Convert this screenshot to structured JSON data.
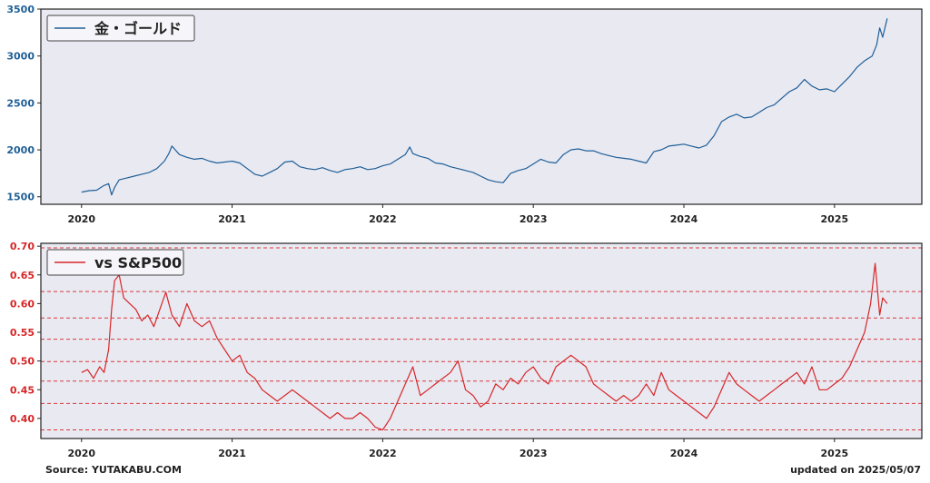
{
  "footer": {
    "source": "Source: YUTAKABU.COM",
    "updated": "updated on 2025/05/07"
  },
  "colors": {
    "gold_line": "#1f5f96",
    "ratio_line": "#d62728",
    "axes_bg": "#e9e9f2",
    "hline": "#d62728"
  },
  "chart_data": [
    {
      "type": "line",
      "title": "",
      "legend": {
        "label": "金・ゴールド",
        "position": "top-left"
      },
      "xlabel": "",
      "ylabel": "",
      "x_ticks": [
        "2020",
        "2021",
        "2022",
        "2023",
        "2024",
        "2025"
      ],
      "xlim": [
        2019.73,
        2025.58
      ],
      "ylim": [
        1420,
        3500
      ],
      "y_ticks": [
        1500,
        2000,
        2500,
        3000,
        3500
      ],
      "grid": false,
      "series": [
        {
          "name": "金・ゴールド",
          "x": [
            2020.0,
            2020.05,
            2020.1,
            2020.15,
            2020.18,
            2020.2,
            2020.22,
            2020.25,
            2020.3,
            2020.35,
            2020.4,
            2020.45,
            2020.5,
            2020.55,
            2020.58,
            2020.6,
            2020.65,
            2020.7,
            2020.75,
            2020.8,
            2020.85,
            2020.9,
            2020.95,
            2021.0,
            2021.05,
            2021.1,
            2021.15,
            2021.2,
            2021.25,
            2021.3,
            2021.35,
            2021.4,
            2021.45,
            2021.5,
            2021.55,
            2021.6,
            2021.65,
            2021.7,
            2021.75,
            2021.8,
            2021.85,
            2021.9,
            2021.95,
            2022.0,
            2022.05,
            2022.1,
            2022.15,
            2022.18,
            2022.2,
            2022.25,
            2022.3,
            2022.35,
            2022.4,
            2022.45,
            2022.5,
            2022.55,
            2022.6,
            2022.65,
            2022.7,
            2022.75,
            2022.8,
            2022.85,
            2022.9,
            2022.95,
            2023.0,
            2023.05,
            2023.1,
            2023.15,
            2023.2,
            2023.25,
            2023.3,
            2023.35,
            2023.4,
            2023.45,
            2023.5,
            2023.55,
            2023.6,
            2023.65,
            2023.7,
            2023.75,
            2023.8,
            2023.85,
            2023.9,
            2023.95,
            2024.0,
            2024.05,
            2024.1,
            2024.15,
            2024.2,
            2024.25,
            2024.3,
            2024.35,
            2024.4,
            2024.45,
            2024.5,
            2024.55,
            2024.6,
            2024.65,
            2024.7,
            2024.75,
            2024.8,
            2024.85,
            2024.9,
            2024.95,
            2025.0,
            2025.05,
            2025.1,
            2025.15,
            2025.2,
            2025.25,
            2025.28,
            2025.3,
            2025.32,
            2025.35
          ],
          "y": [
            1550,
            1565,
            1570,
            1620,
            1640,
            1520,
            1600,
            1680,
            1700,
            1720,
            1740,
            1760,
            1800,
            1880,
            1960,
            2040,
            1950,
            1920,
            1900,
            1910,
            1880,
            1860,
            1870,
            1880,
            1860,
            1800,
            1740,
            1720,
            1760,
            1800,
            1870,
            1880,
            1820,
            1800,
            1790,
            1810,
            1780,
            1760,
            1790,
            1800,
            1820,
            1790,
            1800,
            1830,
            1850,
            1900,
            1950,
            2030,
            1960,
            1930,
            1910,
            1860,
            1850,
            1820,
            1800,
            1780,
            1760,
            1720,
            1680,
            1660,
            1650,
            1750,
            1780,
            1800,
            1850,
            1900,
            1870,
            1860,
            1950,
            2000,
            2010,
            1990,
            1990,
            1960,
            1940,
            1920,
            1910,
            1900,
            1880,
            1860,
            1980,
            2000,
            2040,
            2050,
            2060,
            2040,
            2020,
            2050,
            2150,
            2300,
            2350,
            2380,
            2340,
            2350,
            2400,
            2450,
            2480,
            2550,
            2620,
            2660,
            2750,
            2680,
            2640,
            2650,
            2620,
            2700,
            2780,
            2880,
            2950,
            3000,
            3120,
            3300,
            3200,
            3400
          ]
        }
      ]
    },
    {
      "type": "line",
      "title": "",
      "legend": {
        "label": "vs S&P500",
        "position": "top-left"
      },
      "xlabel": "",
      "ylabel": "",
      "x_ticks": [
        "2020",
        "2021",
        "2022",
        "2023",
        "2024",
        "2025"
      ],
      "xlim": [
        2019.73,
        2025.58
      ],
      "ylim": [
        0.365,
        0.705
      ],
      "y_ticks": [
        0.4,
        0.45,
        0.5,
        0.55,
        0.6,
        0.65,
        0.7
      ],
      "y_tick_labels": [
        "0.40",
        "0.45",
        "0.50",
        "0.55",
        "0.60",
        "0.65",
        "0.70"
      ],
      "hlines": [
        0.38,
        0.426,
        0.465,
        0.499,
        0.538,
        0.575,
        0.621,
        0.697
      ],
      "grid": false,
      "series": [
        {
          "name": "vs S&P500",
          "x": [
            2020.0,
            2020.04,
            2020.08,
            2020.12,
            2020.15,
            2020.18,
            2020.2,
            2020.22,
            2020.25,
            2020.28,
            2020.32,
            2020.36,
            2020.4,
            2020.44,
            2020.48,
            2020.52,
            2020.56,
            2020.6,
            2020.65,
            2020.7,
            2020.75,
            2020.8,
            2020.85,
            2020.9,
            2020.95,
            2021.0,
            2021.05,
            2021.1,
            2021.15,
            2021.2,
            2021.25,
            2021.3,
            2021.35,
            2021.4,
            2021.45,
            2021.5,
            2021.55,
            2021.6,
            2021.65,
            2021.7,
            2021.75,
            2021.8,
            2021.85,
            2021.9,
            2021.95,
            2022.0,
            2022.05,
            2022.1,
            2022.15,
            2022.2,
            2022.25,
            2022.3,
            2022.35,
            2022.4,
            2022.45,
            2022.5,
            2022.55,
            2022.6,
            2022.65,
            2022.7,
            2022.75,
            2022.8,
            2022.85,
            2022.9,
            2022.95,
            2023.0,
            2023.05,
            2023.1,
            2023.15,
            2023.2,
            2023.25,
            2023.3,
            2023.35,
            2023.4,
            2023.45,
            2023.5,
            2023.55,
            2023.6,
            2023.65,
            2023.7,
            2023.75,
            2023.8,
            2023.85,
            2023.9,
            2023.95,
            2024.0,
            2024.05,
            2024.1,
            2024.15,
            2024.2,
            2024.25,
            2024.3,
            2024.35,
            2024.4,
            2024.45,
            2024.5,
            2024.55,
            2024.6,
            2024.65,
            2024.7,
            2024.75,
            2024.8,
            2024.85,
            2024.9,
            2024.95,
            2025.0,
            2025.05,
            2025.1,
            2025.15,
            2025.2,
            2025.24,
            2025.27,
            2025.3,
            2025.32,
            2025.35
          ],
          "y": [
            0.48,
            0.485,
            0.47,
            0.49,
            0.48,
            0.52,
            0.59,
            0.64,
            0.65,
            0.61,
            0.6,
            0.59,
            0.57,
            0.58,
            0.56,
            0.59,
            0.62,
            0.58,
            0.56,
            0.6,
            0.57,
            0.56,
            0.57,
            0.54,
            0.52,
            0.5,
            0.51,
            0.48,
            0.47,
            0.45,
            0.44,
            0.43,
            0.44,
            0.45,
            0.44,
            0.43,
            0.42,
            0.41,
            0.4,
            0.41,
            0.4,
            0.4,
            0.41,
            0.4,
            0.385,
            0.38,
            0.4,
            0.43,
            0.46,
            0.49,
            0.44,
            0.45,
            0.46,
            0.47,
            0.48,
            0.5,
            0.45,
            0.44,
            0.42,
            0.43,
            0.46,
            0.45,
            0.47,
            0.46,
            0.48,
            0.49,
            0.47,
            0.46,
            0.49,
            0.5,
            0.51,
            0.5,
            0.49,
            0.46,
            0.45,
            0.44,
            0.43,
            0.44,
            0.43,
            0.44,
            0.46,
            0.44,
            0.48,
            0.45,
            0.44,
            0.43,
            0.42,
            0.41,
            0.4,
            0.42,
            0.45,
            0.48,
            0.46,
            0.45,
            0.44,
            0.43,
            0.44,
            0.45,
            0.46,
            0.47,
            0.48,
            0.46,
            0.49,
            0.45,
            0.45,
            0.46,
            0.47,
            0.49,
            0.52,
            0.55,
            0.6,
            0.67,
            0.58,
            0.61,
            0.6
          ]
        }
      ]
    }
  ]
}
